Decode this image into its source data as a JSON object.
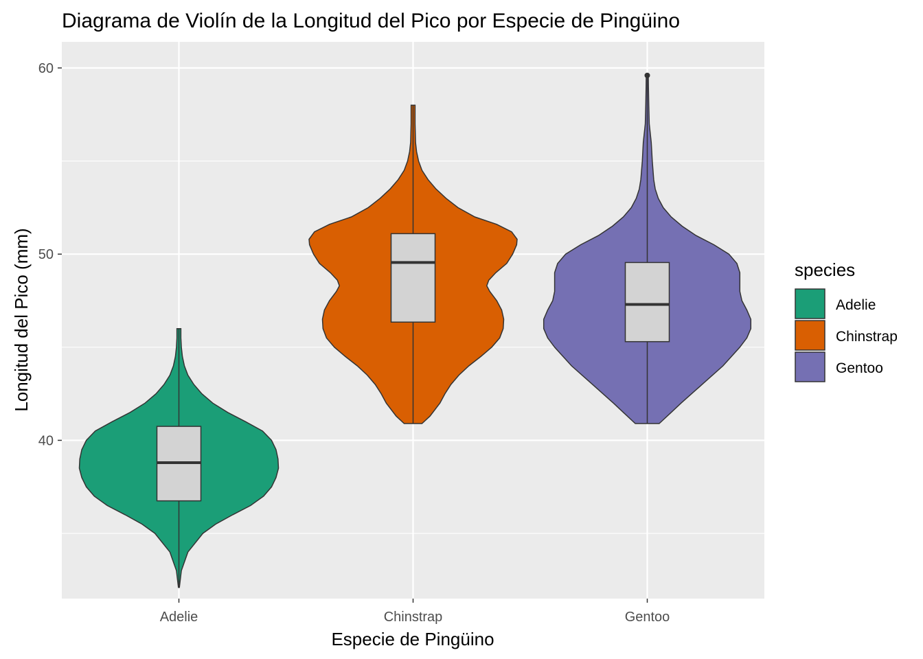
{
  "chart_data": {
    "type": "violin",
    "title": "Diagrama de Violín de la Longitud del Pico por Especie de Pingüino",
    "xlabel": "Especie de Pingüino",
    "ylabel": "Longitud del Pico (mm)",
    "ylim": [
      31.5,
      61.4
    ],
    "yticks": [
      40,
      50,
      60
    ],
    "ytick_labels": [
      "40",
      "50",
      "60"
    ],
    "categories": [
      "Adelie",
      "Chinstrap",
      "Gentoo"
    ],
    "grid": true,
    "legend": {
      "title": "species",
      "placement": "right",
      "entries": [
        "Adelie",
        "Chinstrap",
        "Gentoo"
      ]
    },
    "colors": {
      "Adelie": "#1b9e77",
      "Chinstrap": "#d95f02",
      "Gentoo": "#7570b3",
      "box_fill": "#d3d3d3",
      "panel": "#ebebeb",
      "grid": "#ffffff",
      "outline": "#333333"
    },
    "series": [
      {
        "name": "Adelie",
        "min": 32.1,
        "max": 46.0,
        "q1": 36.75,
        "median": 38.8,
        "q3": 40.75,
        "outliers": [],
        "density": [
          [
            32.1,
            0.005
          ],
          [
            33.0,
            0.025
          ],
          [
            34.0,
            0.09
          ],
          [
            35.0,
            0.24
          ],
          [
            35.5,
            0.37
          ],
          [
            36.0,
            0.54
          ],
          [
            36.5,
            0.72
          ],
          [
            37.0,
            0.85
          ],
          [
            37.5,
            0.93
          ],
          [
            38.0,
            0.975
          ],
          [
            38.5,
            1.0
          ],
          [
            39.0,
            0.995
          ],
          [
            39.5,
            0.975
          ],
          [
            40.0,
            0.93
          ],
          [
            40.5,
            0.84
          ],
          [
            41.0,
            0.67
          ],
          [
            41.5,
            0.49
          ],
          [
            42.0,
            0.34
          ],
          [
            42.5,
            0.23
          ],
          [
            43.0,
            0.15
          ],
          [
            43.5,
            0.09
          ],
          [
            44.0,
            0.055
          ],
          [
            44.5,
            0.035
          ],
          [
            45.0,
            0.025
          ],
          [
            45.5,
            0.02
          ],
          [
            46.0,
            0.02
          ]
        ]
      },
      {
        "name": "Chinstrap",
        "min": 40.9,
        "max": 58.0,
        "q1": 46.35,
        "median": 49.55,
        "q3": 51.1,
        "outliers": [],
        "density": [
          [
            40.9,
            0.09
          ],
          [
            41.3,
            0.17
          ],
          [
            42.0,
            0.27
          ],
          [
            42.5,
            0.32
          ],
          [
            43.0,
            0.38
          ],
          [
            43.5,
            0.46
          ],
          [
            44.0,
            0.56
          ],
          [
            44.5,
            0.68
          ],
          [
            45.0,
            0.79
          ],
          [
            45.5,
            0.87
          ],
          [
            46.0,
            0.905
          ],
          [
            46.5,
            0.91
          ],
          [
            47.0,
            0.89
          ],
          [
            47.5,
            0.84
          ],
          [
            48.0,
            0.77
          ],
          [
            48.3,
            0.74
          ],
          [
            48.6,
            0.76
          ],
          [
            49.0,
            0.83
          ],
          [
            49.5,
            0.94
          ],
          [
            50.0,
            1.0
          ],
          [
            50.5,
            1.04
          ],
          [
            50.8,
            1.045
          ],
          [
            51.2,
            0.99
          ],
          [
            51.6,
            0.84
          ],
          [
            52.0,
            0.62
          ],
          [
            52.5,
            0.45
          ],
          [
            53.0,
            0.33
          ],
          [
            53.5,
            0.23
          ],
          [
            54.0,
            0.15
          ],
          [
            54.5,
            0.09
          ],
          [
            55.0,
            0.055
          ],
          [
            55.5,
            0.035
          ],
          [
            56.0,
            0.025
          ],
          [
            57.0,
            0.02
          ],
          [
            58.0,
            0.02
          ]
        ]
      },
      {
        "name": "Gentoo",
        "min": 40.9,
        "max": 59.6,
        "q1": 45.3,
        "median": 47.3,
        "q3": 49.55,
        "outliers": [
          59.6
        ],
        "density": [
          [
            40.9,
            0.12
          ],
          [
            41.5,
            0.24
          ],
          [
            42.0,
            0.34
          ],
          [
            43.0,
            0.55
          ],
          [
            44.0,
            0.76
          ],
          [
            45.0,
            0.93
          ],
          [
            45.5,
            1.0
          ],
          [
            46.0,
            1.04
          ],
          [
            46.5,
            1.04
          ],
          [
            47.0,
            1.0
          ],
          [
            47.5,
            0.95
          ],
          [
            48.0,
            0.93
          ],
          [
            48.5,
            0.93
          ],
          [
            49.0,
            0.93
          ],
          [
            49.5,
            0.9
          ],
          [
            50.0,
            0.82
          ],
          [
            50.5,
            0.67
          ],
          [
            51.0,
            0.49
          ],
          [
            51.5,
            0.35
          ],
          [
            52.0,
            0.24
          ],
          [
            52.5,
            0.16
          ],
          [
            53.0,
            0.11
          ],
          [
            53.5,
            0.08
          ],
          [
            54.0,
            0.065
          ],
          [
            55.0,
            0.05
          ],
          [
            56.0,
            0.04
          ],
          [
            57.0,
            0.02
          ],
          [
            58.0,
            0.015
          ],
          [
            59.0,
            0.012
          ],
          [
            59.6,
            0.01
          ]
        ]
      }
    ]
  }
}
